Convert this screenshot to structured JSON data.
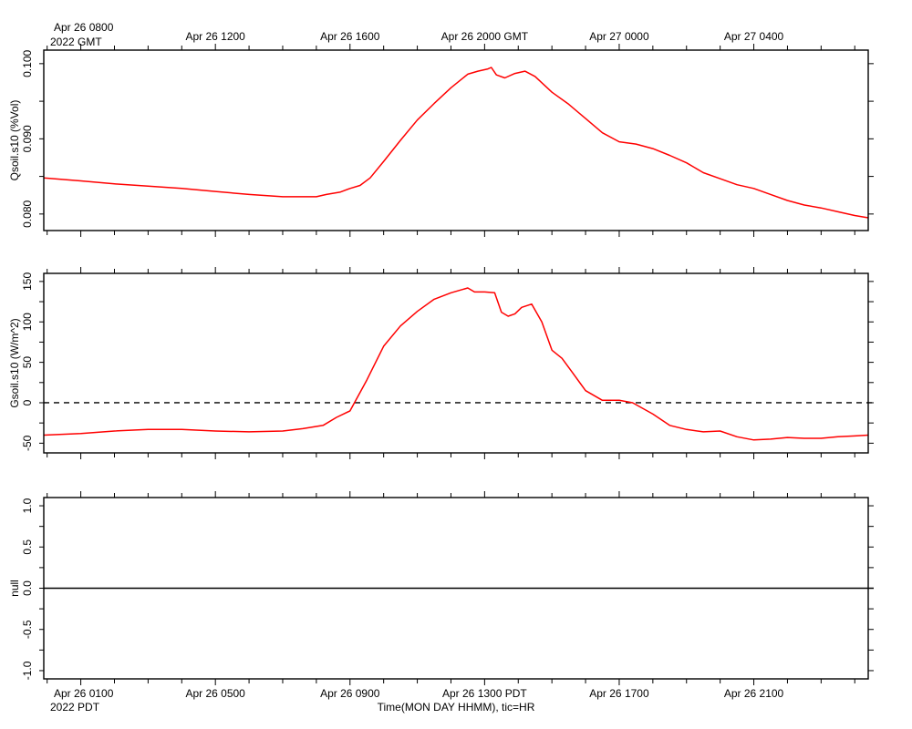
{
  "top_axis": {
    "corner_line1": "Apr 26 0800",
    "corner_line2": "2022 GMT",
    "tick_labels": [
      "Apr 26 1200",
      "Apr 26 1600",
      "Apr 26 2000 GMT",
      "Apr 27 0000",
      "Apr 27 0400"
    ],
    "tick_label_hours": [
      4,
      8,
      12,
      16,
      20
    ]
  },
  "bottom_axis": {
    "corner_line1": "Apr 26 0100",
    "corner_line2": "2022 PDT",
    "tick_labels": [
      "Apr 26 0500",
      "Apr 26 0900",
      "Apr 26 1300 PDT",
      "Apr 26 1700",
      "Apr 26 2100"
    ],
    "tick_label_hours": [
      4,
      8,
      12,
      16,
      20
    ],
    "xlabel": "Time(MON DAY HHMM), tic=HR"
  },
  "x_domain_hours": [
    -1.1,
    23.4
  ],
  "chart_data": [
    {
      "type": "line",
      "ylabel": "Qsoil.s10 (%Vol)",
      "ylim": [
        0.0778,
        0.1018
      ],
      "yticks": [
        "0.080",
        "0.090",
        "0.100"
      ],
      "ytick_values": [
        0.08,
        0.09,
        0.1
      ],
      "grid": false,
      "series": [
        {
          "color": "#ff0000",
          "x": [
            -1.1,
            0,
            1,
            2,
            3,
            4,
            5,
            6,
            6.6,
            7,
            7.3,
            7.7,
            8,
            8.3,
            8.6,
            9,
            9.5,
            10,
            10.5,
            11,
            11.5,
            11.8,
            12.1,
            12.2,
            12.35,
            12.6,
            12.9,
            13.2,
            13.5,
            14,
            14.5,
            15,
            15.5,
            16,
            16.5,
            17,
            17.5,
            18,
            18.5,
            19,
            19.5,
            20,
            20.5,
            21,
            21.5,
            22,
            22.5,
            23,
            23.4
          ],
          "y": [
            0.0848,
            0.0844,
            0.084,
            0.0837,
            0.0834,
            0.083,
            0.0826,
            0.0823,
            0.0823,
            0.0823,
            0.0826,
            0.0829,
            0.0834,
            0.0838,
            0.0848,
            0.087,
            0.0898,
            0.0925,
            0.0947,
            0.0968,
            0.0986,
            0.099,
            0.0993,
            0.0995,
            0.0985,
            0.0981,
            0.0987,
            0.099,
            0.0983,
            0.0962,
            0.0946,
            0.0927,
            0.0908,
            0.0896,
            0.0893,
            0.0887,
            0.0878,
            0.0868,
            0.0855,
            0.0847,
            0.0839,
            0.0834,
            0.0826,
            0.0818,
            0.0812,
            0.0808,
            0.0803,
            0.0798,
            0.0795
          ]
        }
      ]
    },
    {
      "type": "line",
      "ylabel": "Gsoil.s10 (W/m^2)",
      "ylim": [
        -62,
        160
      ],
      "yticks": [
        "-50",
        "0",
        "50",
        "100",
        "150"
      ],
      "ytick_values": [
        -50,
        0,
        50,
        100,
        150
      ],
      "grid": false,
      "reference_line": {
        "y": 0,
        "style": "dashed"
      },
      "series": [
        {
          "color": "#ff0000",
          "x": [
            -1.1,
            0,
            1,
            2,
            3,
            4,
            5,
            6,
            6.6,
            7.2,
            7.6,
            8,
            8.5,
            9,
            9.5,
            10,
            10.5,
            11,
            11.5,
            11.7,
            12,
            12.3,
            12.5,
            12.7,
            12.9,
            13.1,
            13.4,
            13.7,
            14,
            14.3,
            14.6,
            15,
            15.5,
            16,
            16.4,
            17,
            17.5,
            18,
            18.5,
            19,
            19.5,
            20,
            20.5,
            21,
            21.5,
            22,
            22.5,
            23,
            23.4
          ],
          "y": [
            -40,
            -38,
            -35,
            -33,
            -33,
            -35,
            -36,
            -35,
            -32,
            -28,
            -18,
            -10,
            28,
            70,
            95,
            113,
            128,
            136,
            142,
            137,
            137,
            136,
            112,
            107,
            110,
            118,
            122,
            100,
            65,
            55,
            38,
            15,
            3,
            3,
            0,
            -14,
            -28,
            -33,
            -36,
            -35,
            -42,
            -46,
            -45,
            -43,
            -44,
            -44,
            -42,
            -41,
            -40
          ]
        }
      ]
    },
    {
      "type": "line",
      "ylabel": "null",
      "ylim": [
        -1.1,
        1.1
      ],
      "yticks": [
        "-1.0",
        "-0.5",
        "0.0",
        "0.5",
        "1.0"
      ],
      "ytick_values": [
        -1.0,
        -0.5,
        0.0,
        0.5,
        1.0
      ],
      "grid": false,
      "reference_line": {
        "y": 0,
        "style": "solid"
      },
      "series": []
    }
  ]
}
